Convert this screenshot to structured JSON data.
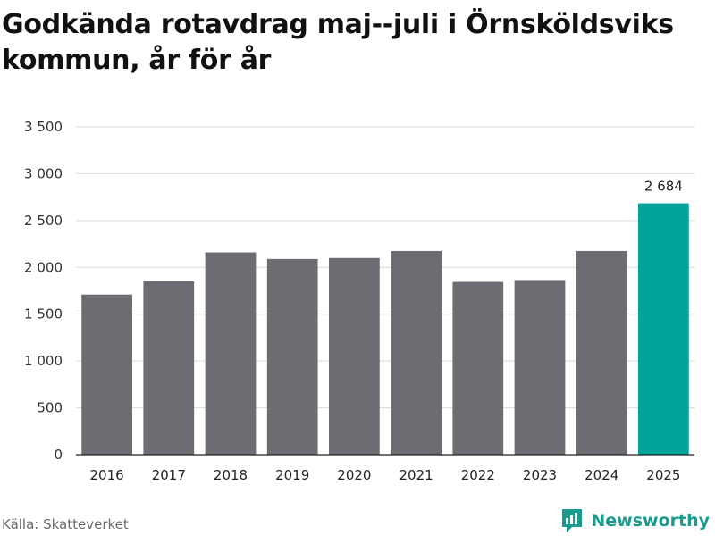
{
  "title": "Godkända rotavdrag maj--juli i Örnsköldsviks kommun, år för år",
  "source": "Källa: Skatteverket",
  "brand": {
    "name": "Newsworthy",
    "icon": "newsworthy-logo-icon"
  },
  "colors": {
    "bar": "#6d6c72",
    "highlight": "#00a39a",
    "grid": "#d9d9d9",
    "axis": "#222222"
  },
  "chart_data": {
    "type": "bar",
    "categories": [
      "2016",
      "2017",
      "2018",
      "2019",
      "2020",
      "2021",
      "2022",
      "2023",
      "2024",
      "2025"
    ],
    "values": [
      1710,
      1850,
      2160,
      2090,
      2100,
      2175,
      1845,
      1865,
      2175,
      2684
    ],
    "highlight_index": 9,
    "data_labels": [
      {
        "index": 9,
        "text": "2 684"
      }
    ],
    "yticks": [
      0,
      500,
      1000,
      1500,
      2000,
      2500,
      3000,
      3500
    ],
    "ytick_labels": [
      "0",
      "500",
      "1 000",
      "1 500",
      "2 000",
      "2 500",
      "3 000",
      "3 500"
    ],
    "ylim": [
      0,
      3500
    ],
    "grid": true,
    "xlabel": "",
    "ylabel": ""
  }
}
